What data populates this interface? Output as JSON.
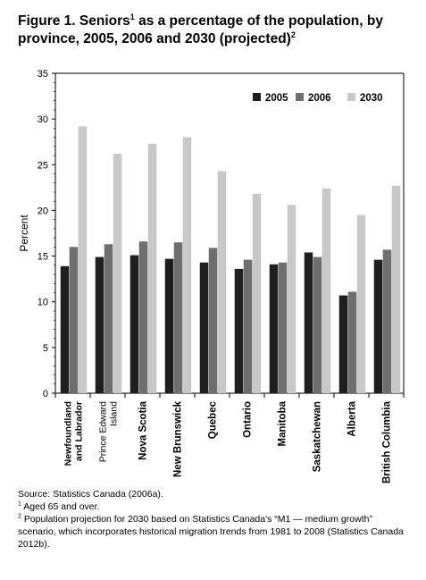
{
  "figure": {
    "title_pre": "Figure 1. Seniors",
    "title_sup1": "1",
    "title_post": " as a percentage of the population, by province, 2005, 2006 and 2030 (projected)",
    "title_sup2": "2"
  },
  "notes": {
    "source": "Source: Statistics Canada (2006a).",
    "note1_mark": "1",
    "note1": " Aged 65 and over.",
    "note2_mark": "2",
    "note2": " Population projection for 2030 based on Statistics Canada's “M1 — medium growth” scenario, which incorporates historical migration trends from 1981 to 2008 (Statistics Canada 2012b)."
  },
  "chart_data": {
    "type": "bar",
    "ylabel": "Percent",
    "ylim": [
      0,
      35
    ],
    "yticks": [
      0,
      5,
      10,
      15,
      20,
      25,
      30,
      35
    ],
    "grid": false,
    "legend_position": "top-right",
    "categories": [
      [
        "Newfoundland",
        "and Labrador"
      ],
      [
        "Prince Edward",
        "Island"
      ],
      [
        "Nova Scotia"
      ],
      [
        "New Brunswick"
      ],
      [
        "Quebec"
      ],
      [
        "Ontario"
      ],
      [
        "Manitoba"
      ],
      [
        "Saskatchewan"
      ],
      [
        "Alberta"
      ],
      [
        "British Columbia"
      ]
    ],
    "series": [
      {
        "name": "2005",
        "color": "#1e1e1e",
        "values": [
          13.9,
          14.9,
          15.1,
          14.7,
          14.3,
          13.6,
          14.1,
          15.4,
          10.7,
          14.6
        ]
      },
      {
        "name": "2006",
        "color": "#6e6e6e",
        "values": [
          16.0,
          16.3,
          16.6,
          16.5,
          15.9,
          14.6,
          14.3,
          14.9,
          11.1,
          15.7
        ]
      },
      {
        "name": "2030",
        "color": "#c8c8c8",
        "values": [
          29.2,
          26.2,
          27.3,
          28.0,
          24.3,
          21.8,
          20.6,
          22.4,
          19.5,
          22.7
        ]
      }
    ]
  }
}
